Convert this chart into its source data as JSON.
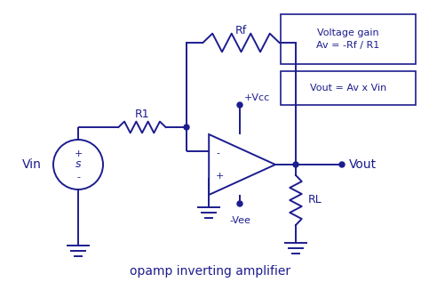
{
  "color": "#1c1c8f",
  "bg_color": "#ffffff",
  "title": "opamp inverting amplifier",
  "title_fontsize": 10,
  "box1_text": "Voltage gain\nAv = -Rf / R1",
  "box2_text": "Vout = Av x Vin",
  "label_Vin": "Vin",
  "label_Vout": "Vout",
  "label_R1": "R1",
  "label_Rf": "Rf",
  "label_RL": "RL",
  "label_Vcc": "+Vcc",
  "label_Vee": "-Vee",
  "label_plus_src": "+",
  "label_minus_src": "-",
  "label_minus_op": "-",
  "label_plus_op": "+"
}
